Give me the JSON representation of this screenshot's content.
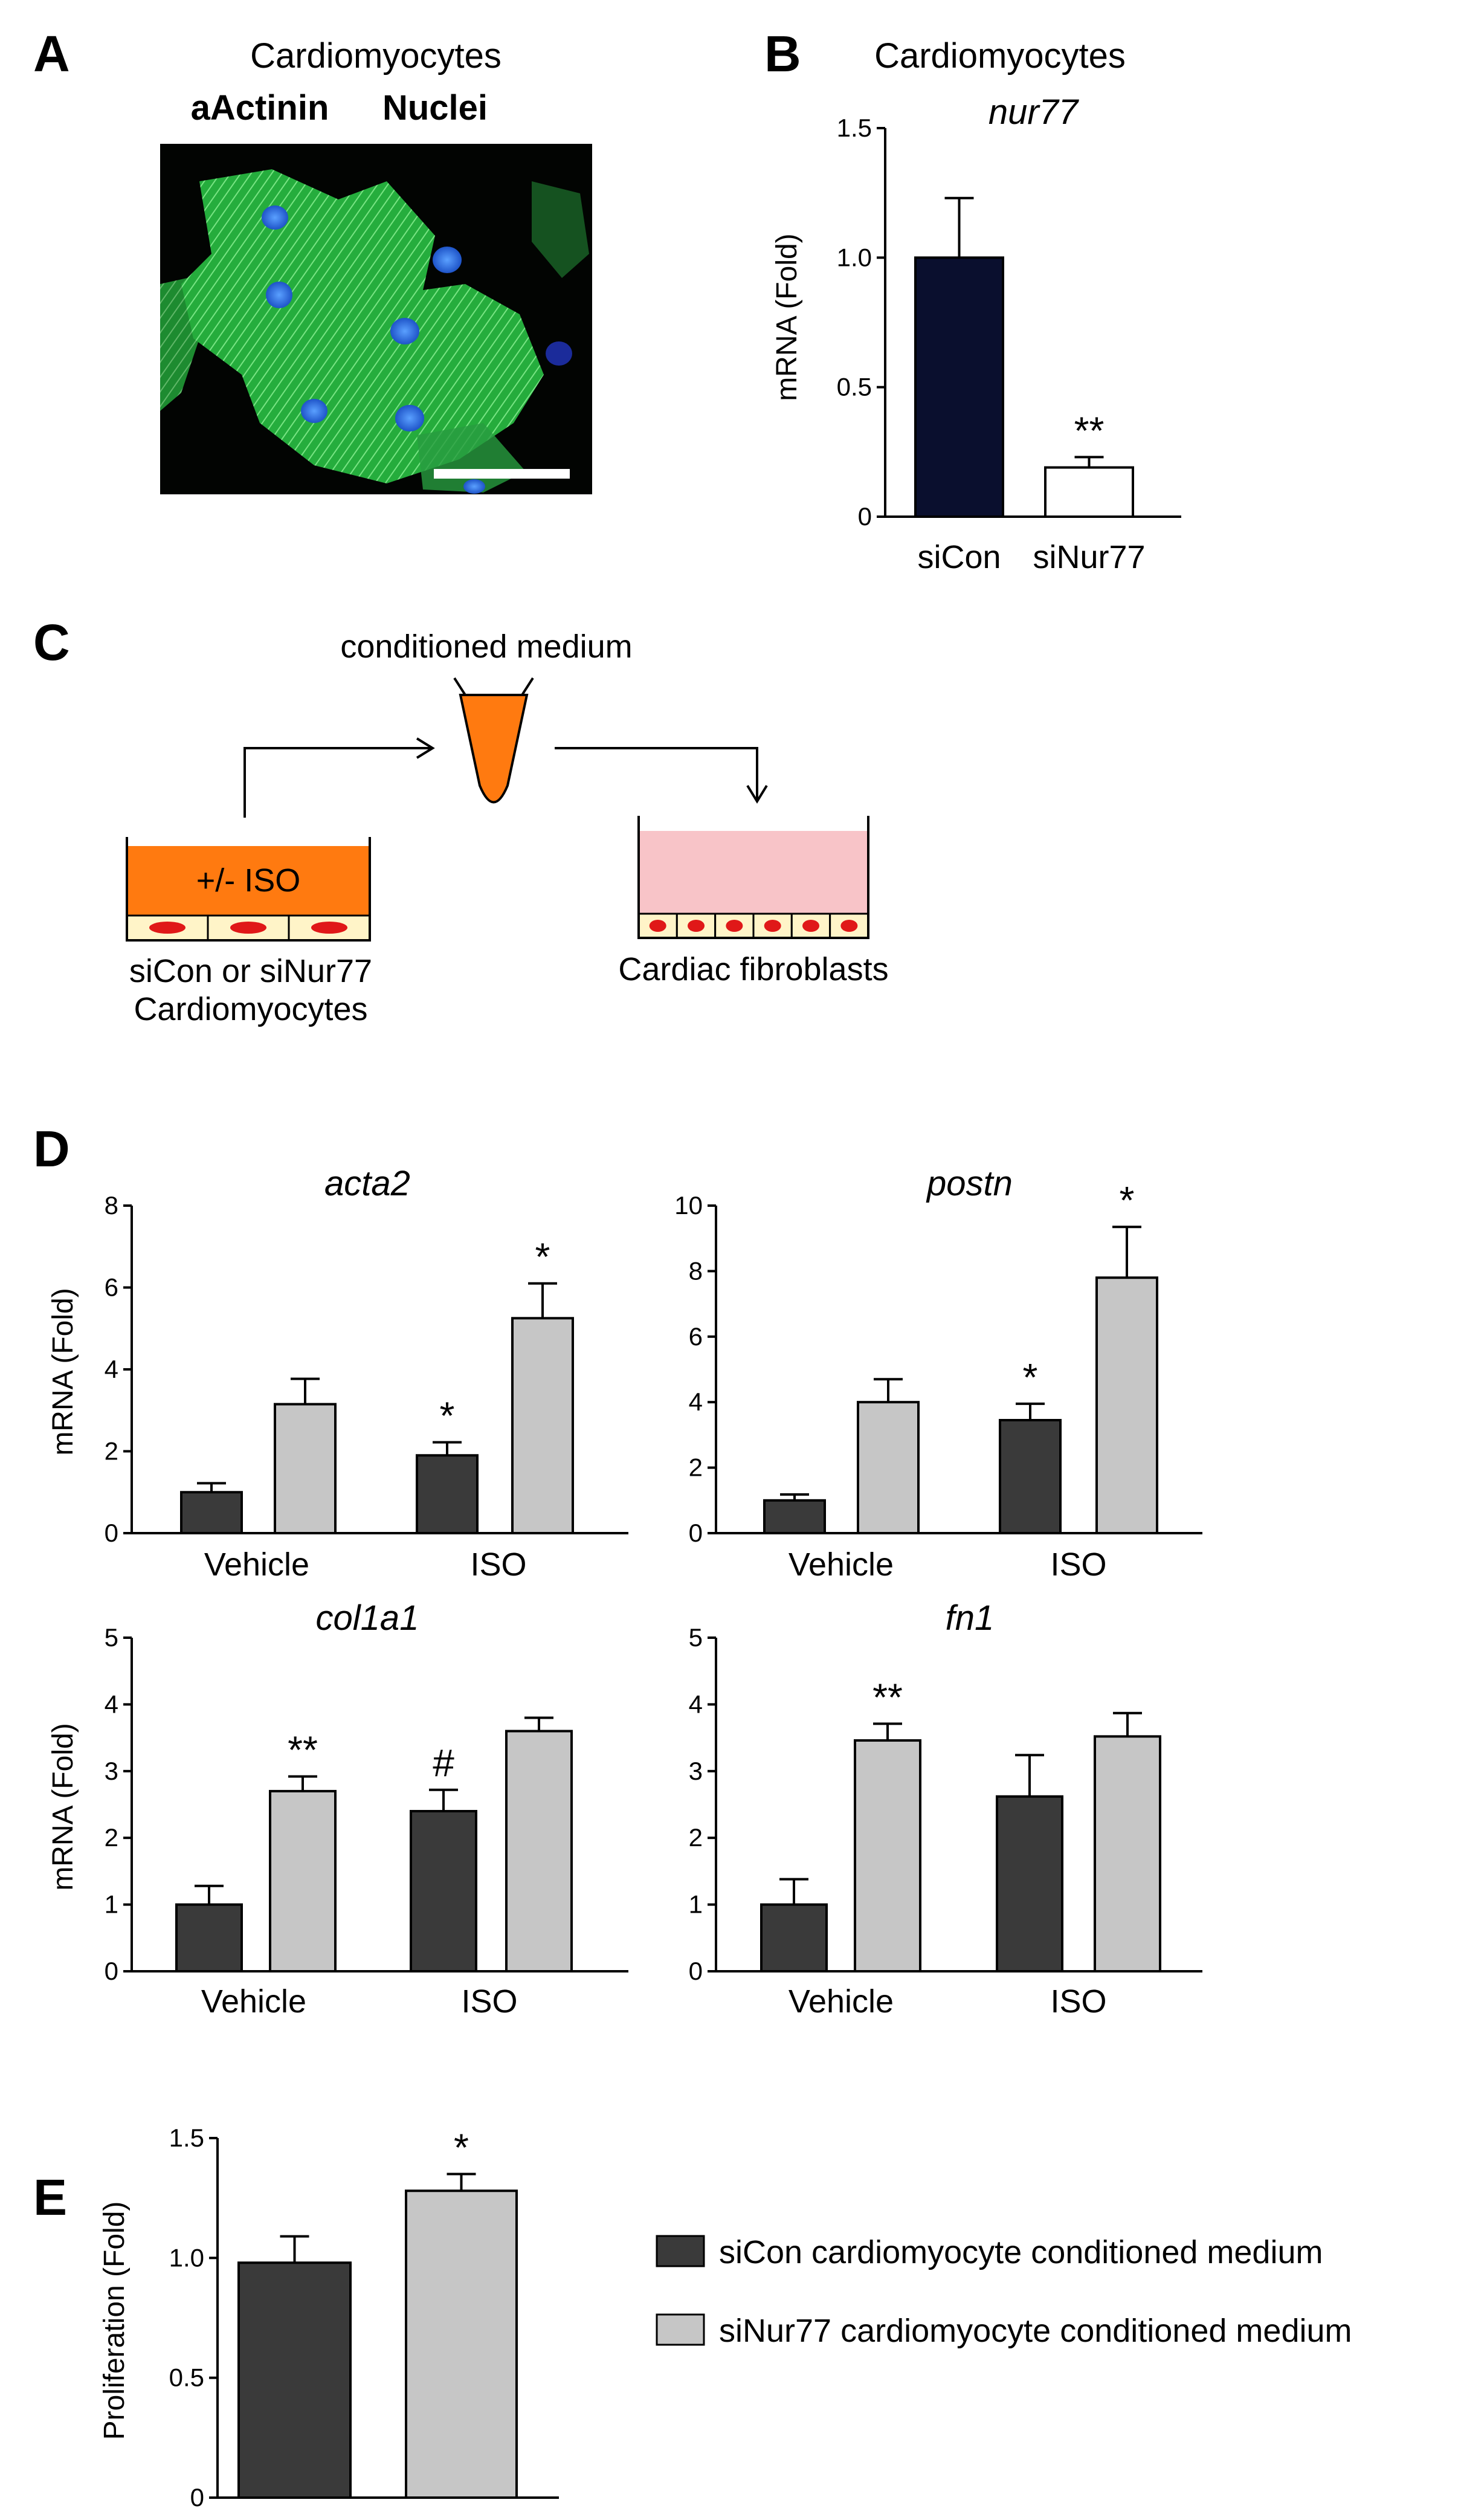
{
  "panels": {
    "A": {
      "letter": "A",
      "title": "Cardiomyocytes",
      "stain_green": "aActinin",
      "stain_blue": "Nuclei",
      "green_color": "#22d83a",
      "blue_color": "#1b2ba0"
    },
    "C": {
      "letter": "C",
      "top_label": "conditioned medium",
      "well_label": "+/- ISO",
      "left_caption_line1": "siCon or siNur77",
      "left_caption_line2": "Cardiomyocytes",
      "right_caption": "Cardiac fibroblasts",
      "medium_color": "#ff7a10",
      "fibro_medium_color": "#f8c4c8",
      "cell_color": "#fff4c8",
      "nucleus_color": "#e01818"
    },
    "D": {
      "letter": "D"
    },
    "E": {
      "letter": "E"
    }
  },
  "legend": {
    "items": [
      {
        "label": "siCon cardiomyocyte conditioned medium",
        "color": "#3a3a3a"
      },
      {
        "label": "siNur77 cardiomyocyte conditioned medium",
        "color": "#c6c6c6"
      }
    ]
  },
  "chart_data": [
    {
      "id": "B",
      "letter": "B",
      "type": "bar",
      "title": "Cardiomyocytes",
      "subtitle": "nur77",
      "ylabel": "mRNA (Fold)",
      "ylim": [
        0,
        1.5
      ],
      "yticks": [
        0,
        0.5,
        1.0,
        1.5
      ],
      "ytick_labels": [
        "0",
        "0.5",
        "1.0",
        "1.5"
      ],
      "categories": [
        "siCon",
        "siNur77"
      ],
      "series": [
        {
          "values": [
            1.0,
            0.19
          ],
          "errors": [
            0.23,
            0.04
          ],
          "colors": [
            "#0a0f2e",
            "#ffffff"
          ]
        }
      ],
      "annotations": [
        "",
        "**"
      ]
    },
    {
      "id": "D1",
      "type": "bar",
      "title": "acta2",
      "ylabel": "mRNA (Fold)",
      "ylim": [
        0,
        8
      ],
      "yticks": [
        0,
        2,
        4,
        6,
        8
      ],
      "ytick_labels": [
        "0",
        "2",
        "4",
        "6",
        "8"
      ],
      "categories": [
        "Vehicle",
        "ISO"
      ],
      "series": [
        {
          "values": [
            1.0,
            1.9
          ],
          "errors": [
            0.22,
            0.32
          ],
          "color": "#3a3a3a"
        },
        {
          "values": [
            3.15,
            5.25
          ],
          "errors": [
            0.62,
            0.85
          ],
          "color": "#c6c6c6"
        }
      ],
      "annotations": [
        [
          "",
          "*"
        ],
        [
          "",
          "*"
        ]
      ]
    },
    {
      "id": "D2",
      "type": "bar",
      "title": "postn",
      "ylabel": "",
      "ylim": [
        0,
        10
      ],
      "yticks": [
        0,
        2,
        4,
        6,
        8,
        10
      ],
      "ytick_labels": [
        "0",
        "2",
        "4",
        "6",
        "8",
        "10"
      ],
      "categories": [
        "Vehicle",
        "ISO"
      ],
      "series": [
        {
          "values": [
            1.0,
            3.45
          ],
          "errors": [
            0.18,
            0.5
          ],
          "color": "#3a3a3a"
        },
        {
          "values": [
            4.0,
            7.8
          ],
          "errors": [
            0.7,
            1.55
          ],
          "color": "#c6c6c6"
        }
      ],
      "annotations": [
        [
          "",
          "*"
        ],
        [
          "",
          "*"
        ]
      ]
    },
    {
      "id": "D3",
      "type": "bar",
      "title": "col1a1",
      "ylabel": "mRNA (Fold)",
      "ylim": [
        0,
        5
      ],
      "yticks": [
        0,
        1,
        2,
        3,
        4,
        5
      ],
      "ytick_labels": [
        "0",
        "1",
        "2",
        "3",
        "4",
        "5"
      ],
      "categories": [
        "Vehicle",
        "ISO"
      ],
      "series": [
        {
          "values": [
            1.0,
            2.4
          ],
          "errors": [
            0.28,
            0.32
          ],
          "color": "#3a3a3a"
        },
        {
          "values": [
            2.7,
            3.6
          ],
          "errors": [
            0.22,
            0.2
          ],
          "color": "#c6c6c6"
        }
      ],
      "annotations": [
        [
          "",
          "#"
        ],
        [
          "**",
          ""
        ]
      ]
    },
    {
      "id": "D4",
      "type": "bar",
      "title": "fn1",
      "ylabel": "",
      "ylim": [
        0,
        5
      ],
      "yticks": [
        0,
        1,
        2,
        3,
        4,
        5
      ],
      "ytick_labels": [
        "0",
        "1",
        "2",
        "3",
        "4",
        "5"
      ],
      "categories": [
        "Vehicle",
        "ISO"
      ],
      "series": [
        {
          "values": [
            1.0,
            2.62
          ],
          "errors": [
            0.38,
            0.62
          ],
          "color": "#3a3a3a"
        },
        {
          "values": [
            3.46,
            3.52
          ],
          "errors": [
            0.25,
            0.35
          ],
          "color": "#c6c6c6"
        }
      ],
      "annotations": [
        [
          "",
          ""
        ],
        [
          "**",
          ""
        ]
      ]
    },
    {
      "id": "E",
      "letter": "E",
      "type": "bar",
      "ylabel": "Proliferation (Fold)",
      "ylim": [
        0,
        1.5
      ],
      "yticks": [
        0,
        0.5,
        1.0,
        1.5
      ],
      "ytick_labels": [
        "0",
        "0.5",
        "1.0",
        "1.5"
      ],
      "categories": [
        "",
        ""
      ],
      "series": [
        {
          "values": [
            0.98,
            1.28
          ],
          "errors": [
            0.11,
            0.07
          ],
          "colors": [
            "#3a3a3a",
            "#c6c6c6"
          ]
        }
      ],
      "annotations": [
        "",
        "*"
      ]
    }
  ]
}
